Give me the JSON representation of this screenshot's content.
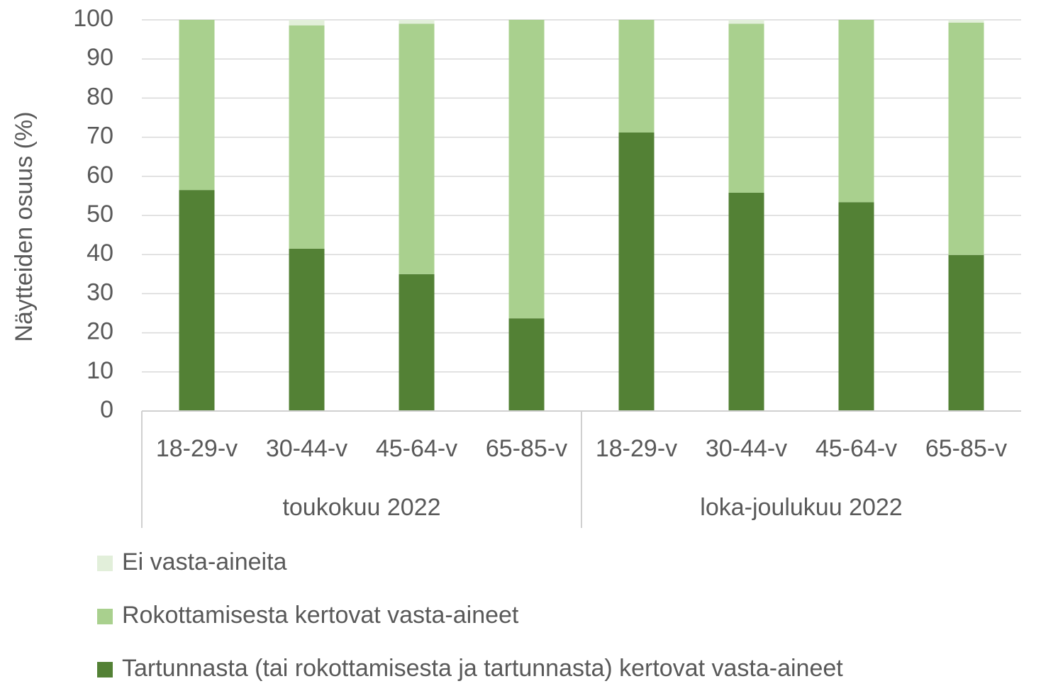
{
  "chart_data": {
    "type": "stacked_bar",
    "y_axis_label": "Näytteiden osuus (%)",
    "groups": [
      {
        "name": "toukokuu 2022",
        "categories": [
          "18-29-v",
          "30-44-v",
          "45-64-v",
          "65-85-v"
        ]
      },
      {
        "name": "loka-joulukuu 2022",
        "categories": [
          "18-29-v",
          "30-44-v",
          "45-64-v",
          "65-85-v"
        ]
      }
    ],
    "series": [
      {
        "name": "Tartunnasta (tai rokottamisesta ja tartunnasta) kertovat vasta-aineet",
        "color": "#538135",
        "values": [
          56.5,
          41.5,
          35.0,
          23.7,
          71.2,
          55.8,
          53.4,
          39.9
        ]
      },
      {
        "name": "Rokottamisesta kertovat vasta-aineet",
        "color": "#a9d08e",
        "values": [
          43.5,
          57.1,
          64.0,
          76.3,
          28.8,
          43.2,
          46.6,
          59.4
        ]
      },
      {
        "name": "Ei vasta-aineita",
        "color": "#e2efda",
        "values": [
          0,
          1.4,
          1.0,
          0,
          0,
          1.0,
          0,
          0.7
        ]
      }
    ],
    "ylim": [
      0,
      100
    ],
    "yticks": [
      0,
      10,
      20,
      30,
      40,
      50,
      60,
      70,
      80,
      90,
      100
    ],
    "grid": true,
    "legend": "bottom"
  }
}
